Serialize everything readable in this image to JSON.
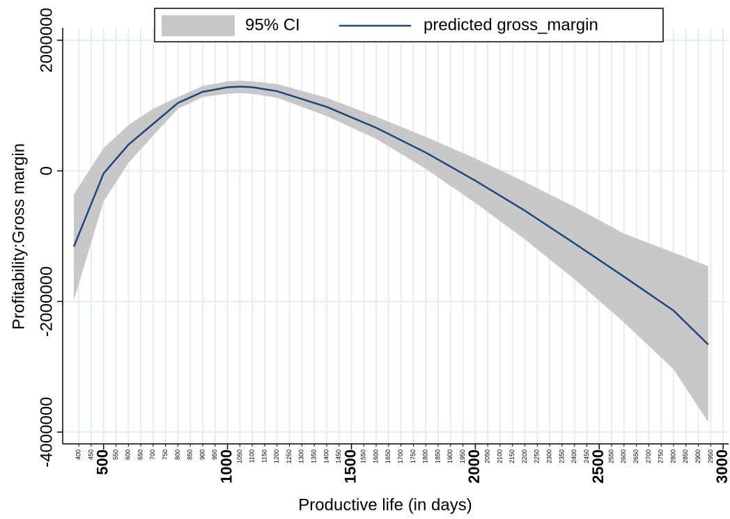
{
  "chart_data": {
    "type": "line",
    "x_label": "Productive life (in days)",
    "y_label": "Profitability:Gross margin",
    "x": [
      380,
      500,
      600,
      700,
      800,
      900,
      1000,
      1050,
      1100,
      1200,
      1400,
      1600,
      1800,
      2000,
      2200,
      2400,
      2600,
      2800,
      2940
    ],
    "series": [
      {
        "name": "95% CI",
        "kind": "band",
        "color": "#c8c8c8",
        "upper": [
          -360000,
          350000,
          700000,
          950000,
          1130000,
          1300000,
          1370000,
          1380000,
          1370000,
          1330000,
          1120000,
          830000,
          520000,
          190000,
          -170000,
          -550000,
          -960000,
          -1250000,
          -1460000
        ],
        "lower": [
          -1980000,
          -470000,
          120000,
          540000,
          950000,
          1130000,
          1180000,
          1190000,
          1180000,
          1120000,
          840000,
          490000,
          30000,
          -490000,
          -1050000,
          -1660000,
          -2320000,
          -3040000,
          -3850000
        ]
      },
      {
        "name": "predicted gross_margin",
        "kind": "line",
        "color": "#1a477a",
        "values": [
          -1160000,
          -40000,
          400000,
          720000,
          1040000,
          1210000,
          1280000,
          1290000,
          1280000,
          1220000,
          980000,
          660000,
          280000,
          -150000,
          -610000,
          -1110000,
          -1620000,
          -2140000,
          -2660000
        ]
      }
    ],
    "xlim": [
      335,
      3022
    ],
    "ylim": [
      -4180000,
      2190000
    ],
    "xticks": [
      500,
      1000,
      1500,
      2000,
      2500,
      3000
    ],
    "xticks_minor": [
      400,
      450,
      550,
      600,
      650,
      700,
      750,
      800,
      850,
      900,
      950,
      1050,
      1100,
      1150,
      1200,
      1250,
      1300,
      1350,
      1400,
      1450,
      1550,
      1600,
      1650,
      1700,
      1750,
      1800,
      1850,
      1900,
      1950,
      2050,
      2100,
      2150,
      2200,
      2250,
      2300,
      2350,
      2400,
      2450,
      2550,
      2600,
      2650,
      2700,
      2750,
      2800,
      2850,
      2900,
      2950
    ],
    "yticks": [
      -4000000,
      -2000000,
      0,
      2000000
    ],
    "grid": true
  }
}
